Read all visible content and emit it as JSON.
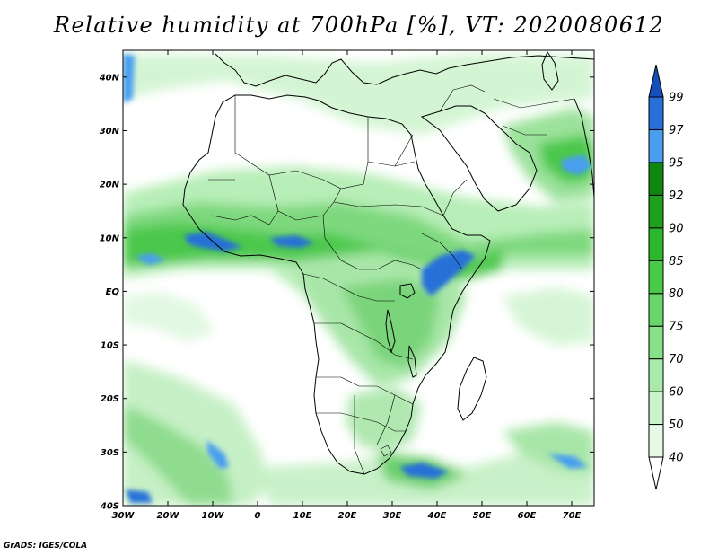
{
  "title": "Relative humidity at 700hPa [%], VT: 2020080612",
  "footer": "GrADS: IGES/COLA",
  "map": {
    "lon_range": [
      -30,
      75
    ],
    "lat_range": [
      -40,
      45
    ],
    "lat_ticks": [
      {
        "value": 40,
        "label": "40N"
      },
      {
        "value": 30,
        "label": "30N"
      },
      {
        "value": 20,
        "label": "20N"
      },
      {
        "value": 10,
        "label": "10N"
      },
      {
        "value": 0,
        "label": "EQ"
      },
      {
        "value": -10,
        "label": "10S"
      },
      {
        "value": -20,
        "label": "20S"
      },
      {
        "value": -30,
        "label": "30S"
      },
      {
        "value": -40,
        "label": "40S"
      }
    ],
    "lon_ticks": [
      {
        "value": -30,
        "label": "30W"
      },
      {
        "value": -20,
        "label": "20W"
      },
      {
        "value": -10,
        "label": "10W"
      },
      {
        "value": 0,
        "label": "0"
      },
      {
        "value": 10,
        "label": "10E"
      },
      {
        "value": 20,
        "label": "20E"
      },
      {
        "value": 30,
        "label": "30E"
      },
      {
        "value": 40,
        "label": "40E"
      },
      {
        "value": 50,
        "label": "50E"
      },
      {
        "value": 60,
        "label": "60E"
      },
      {
        "value": 70,
        "label": "70E"
      }
    ]
  },
  "colorbar": {
    "levels": [
      "40",
      "50",
      "60",
      "70",
      "75",
      "80",
      "85",
      "90",
      "92",
      "95",
      "97",
      "99"
    ],
    "colors": [
      "#ffffff",
      "#e6fae6",
      "#c8f2c8",
      "#a8eaa8",
      "#88e088",
      "#68d668",
      "#48ca48",
      "#2cb82c",
      "#1ea01e",
      "#0f870f",
      "#4a9ef0",
      "#2870d8",
      "#1450b8"
    ]
  },
  "colors": {
    "land_outline": "#000000",
    "very_humid": "#2870d8"
  }
}
